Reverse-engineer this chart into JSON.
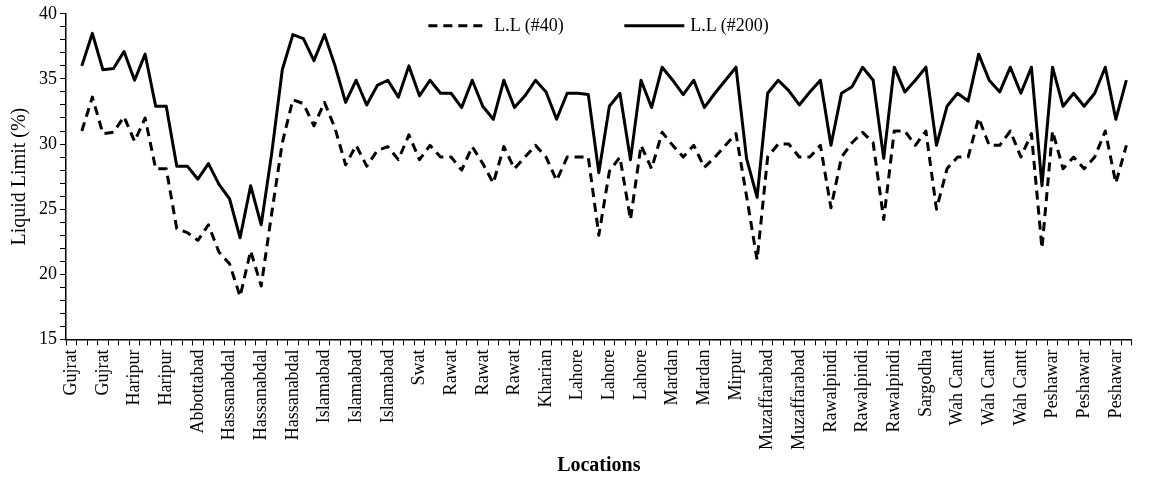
{
  "chart_data": {
    "type": "line",
    "xlabel": "Locations",
    "ylabel": "Liquid Limit (%)",
    "categories": [
      "Gujrat",
      null,
      null,
      "Gujrat",
      null,
      null,
      "Haripur",
      null,
      null,
      "Haripur",
      null,
      null,
      "Abbottabad",
      null,
      null,
      "Hassanabdal",
      null,
      null,
      "Hassanabdal",
      null,
      null,
      "Hassanabdal",
      null,
      null,
      "Islamabad",
      null,
      null,
      "Islamabad",
      null,
      null,
      "Islamabad",
      null,
      null,
      "Swat",
      null,
      null,
      "Rawat",
      null,
      null,
      "Rawat",
      null,
      null,
      "Rawat",
      null,
      null,
      "Kharian",
      null,
      null,
      "Lahore",
      null,
      null,
      "Lahore",
      null,
      null,
      "Lahore",
      null,
      null,
      "Mardan",
      null,
      null,
      "Mardan",
      null,
      null,
      "Mirpur",
      null,
      null,
      "Muzaffarabad",
      null,
      null,
      "Muzaffarabad",
      null,
      null,
      "Rawalpindi",
      null,
      null,
      "Rawalpindi",
      null,
      null,
      "Rawalpindi",
      null,
      null,
      "Sargodha",
      null,
      null,
      "Wah Cantt",
      null,
      null,
      "Wah Cantt",
      null,
      null,
      "Wah Cantt",
      null,
      null,
      "Peshawar",
      null,
      null,
      "Peshawar",
      null,
      null,
      "Peshawar",
      null
    ],
    "series": [
      {
        "name": "L.L (#40)",
        "color": "#000000",
        "line_style": "dashed",
        "values": [
          null,
          31.0,
          33.6,
          30.8,
          30.9,
          32.1,
          30.2,
          32.0,
          28.1,
          28.1,
          23.5,
          23.2,
          22.6,
          23.8,
          21.7,
          20.8,
          18.3,
          21.8,
          19.1,
          24.7,
          30.1,
          33.4,
          33.1,
          31.4,
          33.2,
          31.2,
          28.4,
          29.9,
          28.3,
          29.5,
          29.8,
          28.8,
          30.7,
          28.8,
          29.9,
          29.0,
          29.0,
          28.0,
          29.8,
          28.5,
          27.0,
          29.8,
          28.1,
          29.0,
          29.9,
          29.0,
          27.2,
          29.0,
          29.0,
          29.0,
          23.0,
          27.9,
          29.0,
          24.2,
          29.9,
          28.1,
          30.9,
          29.9,
          29.0,
          29.9,
          28.2,
          29.0,
          29.9,
          30.8,
          26.0,
          21.1,
          29.0,
          30.0,
          30.0,
          29.0,
          29.0,
          29.9,
          25.1,
          29.0,
          30.1,
          30.9,
          30.1,
          24.2,
          31.0,
          31.0,
          29.9,
          31.0,
          25.0,
          28.1,
          29.0,
          29.0,
          32.0,
          29.9,
          29.9,
          31.0,
          29.0,
          30.8,
          22.0,
          31.0,
          28.1,
          29.0,
          28.1,
          29.0,
          31.0,
          27.0,
          29.9
        ]
      },
      {
        "name": "L.L (#200)",
        "color": "#000000",
        "line_style": "solid",
        "values": [
          null,
          36.0,
          38.5,
          35.7,
          35.8,
          37.1,
          34.9,
          36.9,
          32.9,
          32.9,
          28.3,
          28.3,
          27.3,
          28.5,
          26.9,
          25.8,
          22.8,
          26.8,
          23.8,
          29.3,
          35.7,
          38.4,
          38.1,
          36.4,
          38.4,
          36.0,
          33.2,
          34.9,
          33.0,
          34.5,
          34.9,
          33.6,
          36.0,
          33.7,
          34.9,
          33.9,
          33.9,
          32.8,
          34.9,
          32.9,
          31.9,
          34.9,
          32.8,
          33.7,
          34.9,
          34.0,
          31.9,
          33.9,
          33.9,
          33.8,
          27.8,
          32.9,
          33.9,
          28.8,
          34.9,
          32.8,
          35.9,
          34.9,
          33.8,
          34.9,
          32.8,
          33.9,
          34.9,
          35.9,
          28.9,
          25.9,
          33.9,
          34.9,
          34.1,
          33.0,
          34.0,
          34.9,
          29.9,
          33.9,
          34.4,
          35.9,
          34.9,
          28.9,
          35.9,
          34.0,
          34.9,
          35.9,
          29.9,
          32.9,
          33.9,
          33.3,
          36.9,
          34.9,
          34.0,
          35.9,
          33.9,
          35.9,
          26.8,
          35.9,
          32.9,
          33.9,
          32.9,
          33.9,
          35.9,
          31.9,
          34.9
        ]
      }
    ],
    "ylim": [
      15,
      40
    ],
    "yticks": [
      15,
      {
        "value": 16,
        "label": null
      },
      {
        "value": 17,
        "label": null
      },
      {
        "value": 18,
        "label": null
      },
      {
        "value": 19,
        "label": null
      },
      20,
      {
        "value": 21,
        "label": null
      },
      {
        "value": 22,
        "label": null
      },
      {
        "value": 23,
        "label": null
      },
      {
        "value": 24,
        "label": null
      },
      25,
      {
        "value": 26,
        "label": null
      },
      {
        "value": 27,
        "label": null
      },
      {
        "value": 28,
        "label": null
      },
      {
        "value": 29,
        "label": null
      },
      30,
      {
        "value": 31,
        "label": null
      },
      {
        "value": 32,
        "label": null
      },
      {
        "value": 33,
        "label": null
      },
      {
        "value": 34,
        "label": null
      },
      35,
      {
        "value": 36,
        "label": null
      },
      {
        "value": 37,
        "label": null
      },
      {
        "value": 38,
        "label": null
      },
      {
        "value": 39,
        "label": null
      },
      40
    ],
    "grid": false,
    "legend": "top",
    "marker": "none"
  }
}
